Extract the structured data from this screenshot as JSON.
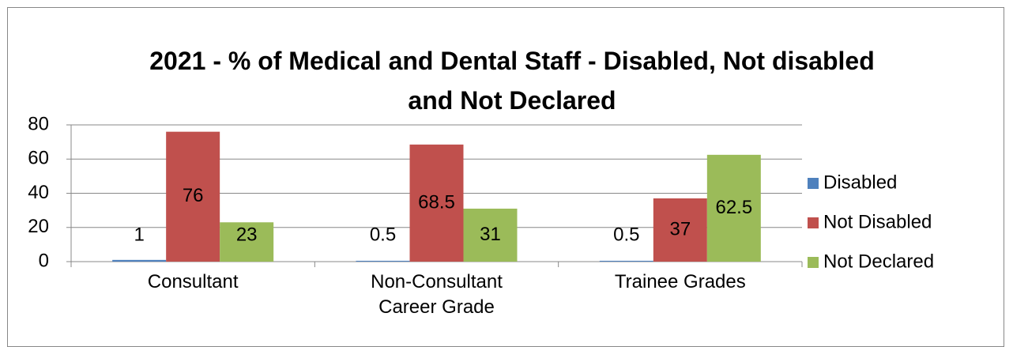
{
  "chart_data": {
    "type": "bar",
    "title": "2021 - % of Medical and Dental Staff - Disabled, Not disabled and Not Declared",
    "categories": [
      "Consultant",
      "Non-Consultant Career Grade",
      "Trainee Grades"
    ],
    "series": [
      {
        "name": "Disabled",
        "color": "#4f81bd",
        "values": [
          1,
          0.5,
          0.5
        ]
      },
      {
        "name": "Not Disabled",
        "color": "#c0504d",
        "values": [
          76,
          68.5,
          37
        ]
      },
      {
        "name": "Not Declared",
        "color": "#9bbb59",
        "values": [
          23,
          31,
          62.5
        ]
      }
    ],
    "ylim": [
      0,
      80
    ],
    "yticks": [
      0,
      20,
      40,
      60,
      80
    ],
    "grid": true,
    "legend": "right"
  }
}
